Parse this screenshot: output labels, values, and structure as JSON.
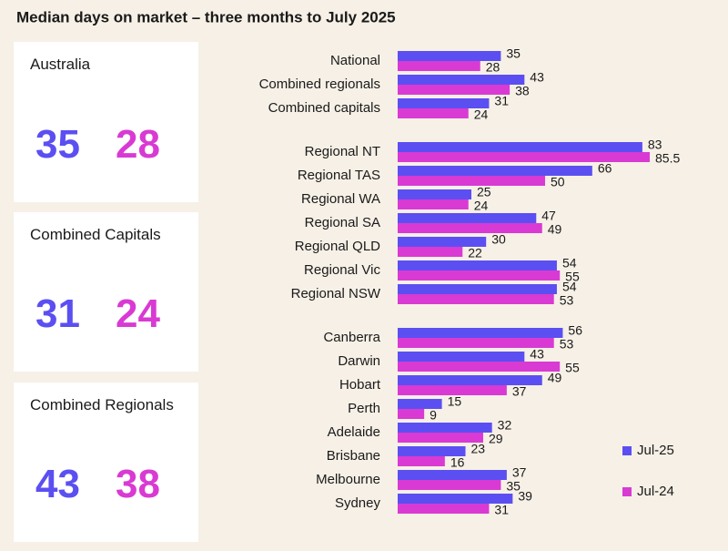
{
  "title": "Median days on market – three months to July 2025",
  "cards": [
    {
      "label": "Australia",
      "values": [
        35,
        28
      ]
    },
    {
      "label": "Combined Capitals",
      "values": [
        31,
        24
      ]
    },
    {
      "label": "Combined Regionals",
      "values": [
        43,
        38
      ]
    }
  ],
  "chart_data": {
    "type": "bar",
    "orientation": "horizontal",
    "categories": [
      "National",
      "Combined regionals",
      "Combined capitals",
      null,
      "Regional NT",
      "Regional TAS",
      "Regional WA",
      "Regional SA",
      "Regional QLD",
      "Regional Vic",
      "Regional NSW",
      null,
      "Canberra",
      "Darwin",
      "Hobart",
      "Perth",
      "Adelaide",
      "Brisbane",
      "Melbourne",
      "Sydney"
    ],
    "series": [
      {
        "name": "Jul-25",
        "color": "#5b4ff2",
        "values": [
          35,
          43,
          31,
          null,
          83,
          66,
          25,
          47,
          30,
          54,
          54,
          null,
          56,
          43,
          49,
          15,
          32,
          23,
          37,
          39
        ]
      },
      {
        "name": "Jul-24",
        "color": "#d93ad3",
        "values": [
          28,
          38,
          24,
          null,
          85.5,
          50,
          24,
          49,
          22,
          55,
          53,
          null,
          53,
          55,
          37,
          9,
          29,
          16,
          35,
          31
        ]
      }
    ]
  }
}
